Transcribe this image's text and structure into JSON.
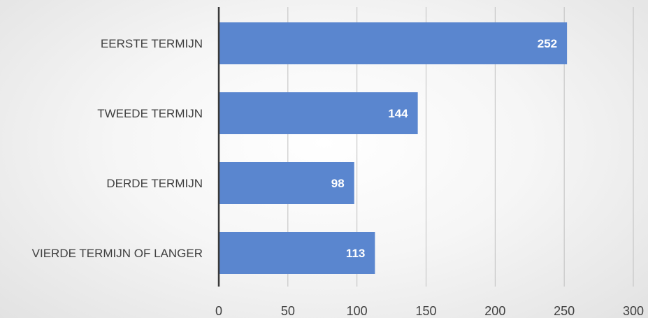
{
  "chart_data": {
    "type": "bar",
    "orientation": "horizontal",
    "categories": [
      "EERSTE TERMIJN",
      "TWEEDE TERMIJN",
      "DERDE TERMIJN",
      "VIERDE TERMIJN OF LANGER"
    ],
    "values": [
      252,
      144,
      98,
      113
    ],
    "data_labels": [
      "252",
      "144",
      "98",
      "113"
    ],
    "xlim": [
      0,
      300
    ],
    "x_ticks": [
      0,
      50,
      100,
      150,
      200,
      250,
      300
    ],
    "x_tick_labels": [
      "0",
      "50",
      "100",
      "150",
      "200",
      "250",
      "300"
    ],
    "title": "",
    "xlabel": "",
    "ylabel": "",
    "grid": "vertical",
    "legend": "none",
    "bar_color": "#5a86cf",
    "grid_color": "#bfbfbf",
    "axis_color": "#3a3a3a",
    "label_color": "#404040"
  }
}
